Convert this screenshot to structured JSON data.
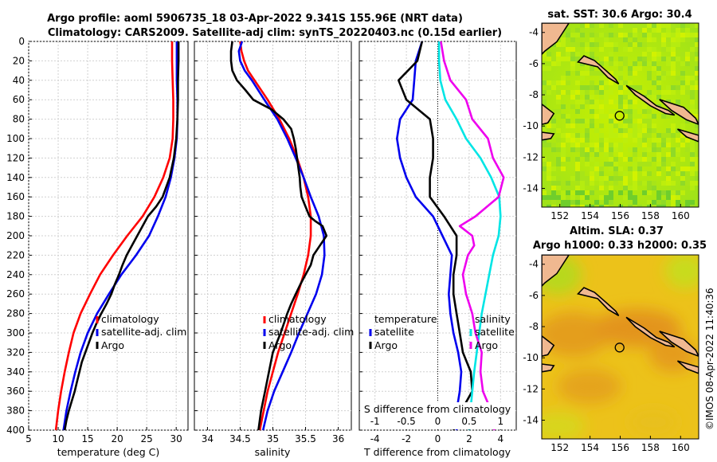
{
  "title": {
    "line1": "Argo profile: aoml 5906735_18 03-Apr-2022 9.341S 155.96E (NRT data)",
    "line2": "Climatology: CARS2009. Satellite-adj clim: synTS_20220403.nc (0.15d earlier)"
  },
  "depth_ticks": [
    "0",
    "20",
    "40",
    "60",
    "80",
    "100",
    "120",
    "140",
    "160",
    "180",
    "200",
    "220",
    "240",
    "260",
    "280",
    "300",
    "320",
    "340",
    "360",
    "380",
    "400"
  ],
  "colors": {
    "climatology": "#ff0000",
    "satellite": "#0000ee",
    "argo": "#000000",
    "t_diff": "#00e5e5",
    "s_diff": "#ee00ee",
    "land": "#f0b890"
  },
  "chart_data": [
    {
      "type": "line",
      "title": "",
      "xlabel": "temperature (deg C)",
      "ylabel": "",
      "xlim": [
        5,
        32
      ],
      "ylim": [
        400,
        0
      ],
      "x_ticks": [
        "5",
        "10",
        "15",
        "20",
        "25",
        "30"
      ],
      "legend": [
        "climatology",
        "satellite-adj. clim",
        "Argo"
      ],
      "series": [
        {
          "name": "climatology",
          "depth": [
            0,
            20,
            40,
            60,
            80,
            100,
            120,
            140,
            160,
            180,
            200,
            220,
            240,
            260,
            280,
            300,
            320,
            340,
            360,
            380,
            400
          ],
          "values": [
            29.3,
            29.3,
            29.4,
            29.5,
            29.5,
            29.4,
            28.9,
            27.8,
            26.3,
            24.3,
            21.7,
            19.3,
            17.1,
            15.4,
            13.8,
            12.6,
            11.8,
            11.1,
            10.5,
            10.0,
            9.6
          ]
        },
        {
          "name": "satellite-adj. clim",
          "depth": [
            0,
            20,
            40,
            60,
            80,
            100,
            120,
            140,
            160,
            180,
            200,
            220,
            240,
            260,
            280,
            300,
            320,
            340,
            360,
            380,
            400
          ],
          "values": [
            30.1,
            30.1,
            30.1,
            30.2,
            30.2,
            30.1,
            29.7,
            29.1,
            28.2,
            26.9,
            25.4,
            23.2,
            20.7,
            18.6,
            16.6,
            15.0,
            13.8,
            12.9,
            12.1,
            11.4,
            10.9
          ]
        },
        {
          "name": "Argo",
          "depth": [
            0,
            20,
            40,
            60,
            80,
            100,
            120,
            140,
            160,
            170,
            180,
            190,
            200,
            210,
            220,
            230,
            240,
            250,
            260,
            270,
            280,
            290,
            300,
            310,
            320,
            330,
            340,
            350,
            360,
            370,
            380,
            390,
            400
          ],
          "values": [
            30.4,
            30.4,
            30.3,
            30.3,
            30.2,
            30.0,
            29.6,
            28.9,
            27.7,
            26.6,
            25.2,
            24.3,
            23.4,
            22.5,
            21.6,
            20.9,
            20.3,
            19.6,
            19.0,
            18.2,
            17.3,
            16.5,
            15.8,
            15.2,
            14.6,
            14.0,
            13.6,
            13.2,
            12.8,
            12.3,
            11.8,
            11.4,
            11.1
          ]
        }
      ]
    },
    {
      "type": "line",
      "title": "",
      "xlabel": "salinity",
      "ylabel": "",
      "xlim": [
        33.8,
        36.2
      ],
      "ylim": [
        400,
        0
      ],
      "x_ticks": [
        "34",
        "34.5",
        "35",
        "35.5",
        "36"
      ],
      "legend": [
        "climatology",
        "satellite-adj. clim",
        "Argo"
      ],
      "series": [
        {
          "name": "climatology",
          "depth": [
            0,
            10,
            20,
            30,
            40,
            60,
            80,
            100,
            120,
            140,
            160,
            180,
            200,
            220,
            240,
            260,
            280,
            300,
            320,
            340,
            360,
            380,
            400
          ],
          "values": [
            34.5,
            34.52,
            34.56,
            34.62,
            34.72,
            34.92,
            35.1,
            35.25,
            35.37,
            35.47,
            35.54,
            35.58,
            35.58,
            35.54,
            35.47,
            35.38,
            35.28,
            35.18,
            35.08,
            35.0,
            34.92,
            34.86,
            34.8
          ]
        },
        {
          "name": "satellite-adj. clim",
          "depth": [
            0,
            10,
            20,
            30,
            40,
            60,
            80,
            100,
            120,
            140,
            160,
            180,
            200,
            220,
            240,
            260,
            280,
            300,
            320,
            340,
            360,
            380,
            400
          ],
          "values": [
            34.53,
            34.48,
            34.5,
            34.57,
            34.68,
            34.87,
            35.07,
            35.22,
            35.35,
            35.47,
            35.58,
            35.7,
            35.78,
            35.79,
            35.75,
            35.66,
            35.53,
            35.4,
            35.28,
            35.15,
            35.02,
            34.92,
            34.85
          ]
        },
        {
          "name": "Argo",
          "depth": [
            0,
            10,
            20,
            30,
            40,
            50,
            60,
            65,
            70,
            80,
            90,
            100,
            110,
            120,
            130,
            140,
            150,
            160,
            170,
            180,
            185,
            190,
            200,
            210,
            220,
            230,
            240,
            250,
            260,
            270,
            280,
            300,
            320,
            340,
            360,
            380,
            400
          ],
          "values": [
            34.38,
            34.36,
            34.36,
            34.38,
            34.45,
            34.58,
            34.7,
            34.84,
            34.98,
            35.16,
            35.28,
            35.32,
            35.35,
            35.37,
            35.39,
            35.41,
            35.42,
            35.44,
            35.5,
            35.56,
            35.65,
            35.76,
            35.82,
            35.72,
            35.62,
            35.58,
            35.5,
            35.42,
            35.35,
            35.28,
            35.22,
            35.12,
            35.0,
            34.94,
            34.88,
            34.82,
            34.78
          ]
        }
      ]
    },
    {
      "type": "line",
      "title": "",
      "xlabel": "T difference from climatology",
      "ylabel": "",
      "xlim": [
        -5,
        5
      ],
      "ylim": [
        400,
        0
      ],
      "x_ticks": [
        "-4",
        "-2",
        "0",
        "2",
        "4"
      ],
      "top_axis": {
        "label": "S difference from climatology",
        "xlim": [
          -1.25,
          1.25
        ],
        "ticks": [
          "-1",
          "-0.5",
          "0",
          "0.5",
          "1"
        ]
      },
      "legend": [
        "temperature",
        "satellite",
        "Argo",
        "salinity",
        "satellite",
        "Argo"
      ],
      "series": [
        {
          "name": "T satellite",
          "axis": "T",
          "depth": [
            0,
            20,
            40,
            60,
            80,
            100,
            120,
            140,
            160,
            180,
            200,
            220,
            240,
            260,
            280,
            300,
            320,
            340,
            360,
            380,
            400
          ],
          "values": [
            -1.0,
            -1.4,
            -1.5,
            -1.6,
            -2.4,
            -2.6,
            -2.4,
            -2.0,
            -1.4,
            -0.3,
            0.3,
            0.9,
            0.8,
            0.7,
            0.8,
            1.0,
            1.3,
            1.5,
            1.4,
            1.2,
            1.2
          ]
        },
        {
          "name": "T Argo",
          "axis": "T",
          "depth": [
            0,
            20,
            40,
            60,
            80,
            100,
            120,
            140,
            160,
            180,
            200,
            220,
            240,
            260,
            280,
            300,
            320,
            340,
            360,
            380,
            400
          ],
          "values": [
            -1.0,
            -1.3,
            -2.5,
            -2.0,
            -0.5,
            -0.3,
            -0.3,
            -0.5,
            -0.5,
            0.4,
            1.2,
            1.2,
            1.0,
            1.0,
            1.2,
            1.4,
            1.6,
            2.1,
            2.2,
            1.5,
            1.0
          ]
        },
        {
          "name": "S satellite",
          "axis": "S",
          "depth": [
            0,
            20,
            40,
            60,
            80,
            100,
            120,
            140,
            160,
            180,
            200,
            220,
            240,
            260,
            280,
            300,
            320,
            340,
            360,
            380,
            400
          ],
          "values": [
            0.02,
            0.02,
            0.04,
            0.12,
            0.3,
            0.45,
            0.68,
            0.85,
            0.98,
            1.0,
            0.97,
            0.88,
            0.82,
            0.76,
            0.7,
            0.66,
            0.62,
            0.58,
            0.55,
            0.52,
            0.5
          ]
        },
        {
          "name": "S Argo",
          "axis": "S",
          "depth": [
            0,
            20,
            40,
            60,
            80,
            100,
            120,
            140,
            160,
            180,
            190,
            200,
            210,
            220,
            240,
            260,
            280,
            300,
            320,
            340,
            360,
            380,
            400
          ],
          "values": [
            0.05,
            0.1,
            0.2,
            0.45,
            0.55,
            0.8,
            0.88,
            1.05,
            0.97,
            0.6,
            0.35,
            0.55,
            0.58,
            0.48,
            0.4,
            0.45,
            0.55,
            0.6,
            0.7,
            0.68,
            0.72,
            0.85,
            0.9
          ]
        }
      ]
    },
    {
      "type": "heatmap",
      "title": "sat. SST: 30.6 Argo: 30.4",
      "x_ticks": [
        "152",
        "154",
        "156",
        "158",
        "160"
      ],
      "y_ticks": [
        "-4",
        "-6",
        "-8",
        "-10",
        "-12",
        "-14"
      ],
      "xlim": [
        150.8,
        161.2
      ],
      "ylim": [
        -15.2,
        -3.4
      ],
      "profile_location": {
        "lon": 155.96,
        "lat": -9.341
      }
    },
    {
      "type": "heatmap",
      "title_line1": "Altim. SLA: 0.37",
      "title_line2": "Argo h1000: 0.33 h2000: 0.35",
      "x_ticks": [
        "152",
        "154",
        "156",
        "158",
        "160"
      ],
      "y_ticks": [
        "-4",
        "-6",
        "-8",
        "-10",
        "-12",
        "-14"
      ],
      "xlim": [
        150.8,
        161.2
      ],
      "ylim": [
        -15.2,
        -3.4
      ],
      "profile_location": {
        "lon": 155.96,
        "lat": -9.341
      }
    }
  ],
  "legend_labels": {
    "climatology": "climatology",
    "satellite_adj": "satellite-adj. clim",
    "argo": "Argo",
    "temperature": "temperature",
    "salinity": "salinity",
    "satellite": "satellite"
  },
  "credit": "©IMOS 08-Apr-2022 11:40:36"
}
